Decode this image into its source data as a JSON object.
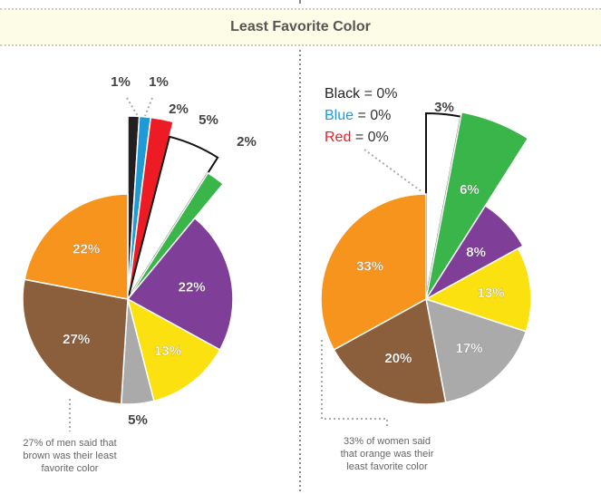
{
  "title": "Least Favorite Color",
  "chart_data": [
    {
      "type": "pie",
      "group": "men",
      "categories": [
        "Black",
        "Blue",
        "Red",
        "White",
        "Green",
        "Purple",
        "Yellow",
        "Gray",
        "Brown",
        "Orange"
      ],
      "values": [
        1,
        1,
        2,
        5,
        2,
        22,
        13,
        5,
        27,
        22
      ],
      "labels": [
        "1%",
        "1%",
        "2%",
        "5%",
        "2%",
        "22%",
        "13%",
        "5%",
        "27%",
        "22%"
      ],
      "exploded": [
        "Black",
        "Blue",
        "Red",
        "White",
        "Green"
      ],
      "colors": [
        "#231f20",
        "#1e9ad6",
        "#ed1c24",
        "#ffffff",
        "#39b54a",
        "#7f3f98",
        "#fbe10f",
        "#aaaaaa",
        "#8b5e3c",
        "#f7941d"
      ],
      "annotation": "27% of men said that\nbrown was their least\nfavorite color"
    },
    {
      "type": "pie",
      "group": "women",
      "categories": [
        "White",
        "Green",
        "Purple",
        "Yellow",
        "Gray",
        "Brown",
        "Orange"
      ],
      "values": [
        3,
        6,
        8,
        13,
        17,
        20,
        33
      ],
      "labels": [
        "3%",
        "6%",
        "8%",
        "13%",
        "17%",
        "20%",
        "33%"
      ],
      "exploded": [
        "White",
        "Green"
      ],
      "colors": [
        "#ffffff",
        "#39b54a",
        "#7f3f98",
        "#fbe10f",
        "#aaaaaa",
        "#8b5e3c",
        "#f7941d"
      ],
      "annotation": "33% of women said\nthat orange was their\nleast favorite color",
      "legend": [
        {
          "name": "Black",
          "value": "= 0%",
          "color": "#231f20"
        },
        {
          "name": "Blue",
          "value": "= 0%",
          "color": "#1e9ad6"
        },
        {
          "name": "Red",
          "value": "= 0%",
          "color": "#ed1c24"
        }
      ]
    }
  ]
}
